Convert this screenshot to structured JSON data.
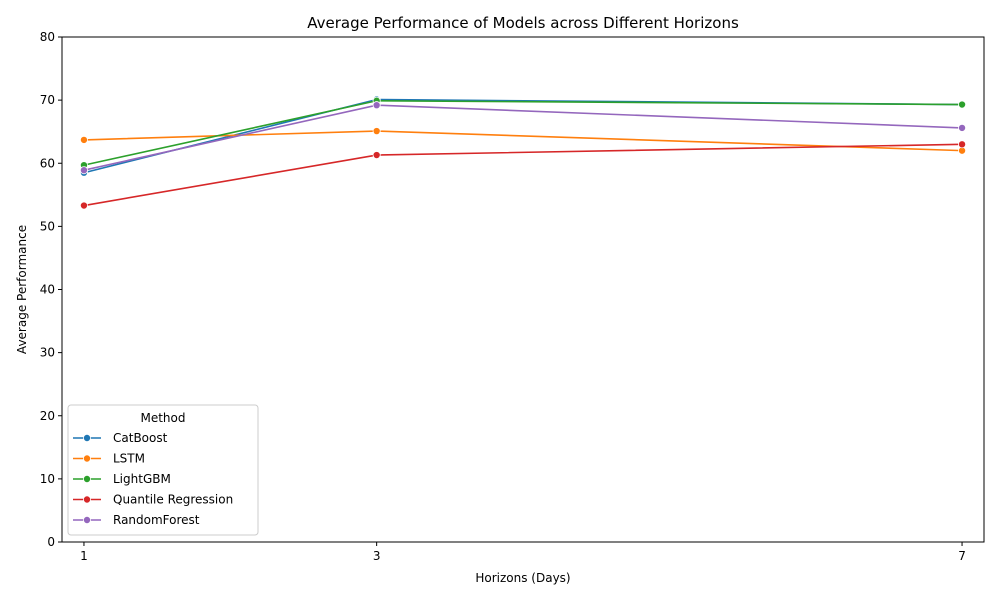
{
  "chart_data": {
    "type": "line",
    "title": "Average Performance of Models across Different Horizons",
    "xlabel": "Horizons (Days)",
    "ylabel": "Average Performance",
    "x": [
      1,
      3,
      7
    ],
    "x_tick_labels": [
      "1",
      "3",
      "7"
    ],
    "ylim": [
      0,
      80
    ],
    "y_ticks": [
      0,
      10,
      20,
      30,
      40,
      50,
      60,
      70,
      80
    ],
    "grid": false,
    "legend": {
      "title": "Method",
      "placement": "lower-left"
    },
    "series": [
      {
        "name": "CatBoost",
        "color": "#1f77b4",
        "values": [
          58.5,
          70.1,
          69.3
        ]
      },
      {
        "name": "LSTM",
        "color": "#ff7f0e",
        "values": [
          63.7,
          65.1,
          62.0
        ]
      },
      {
        "name": "LightGBM",
        "color": "#2ca02c",
        "values": [
          59.7,
          69.9,
          69.3
        ]
      },
      {
        "name": "Quantile Regression",
        "color": "#d62728",
        "values": [
          53.3,
          61.3,
          63.0
        ]
      },
      {
        "name": "RandomForest",
        "color": "#9467bd",
        "values": [
          58.9,
          69.2,
          65.6
        ]
      }
    ]
  }
}
